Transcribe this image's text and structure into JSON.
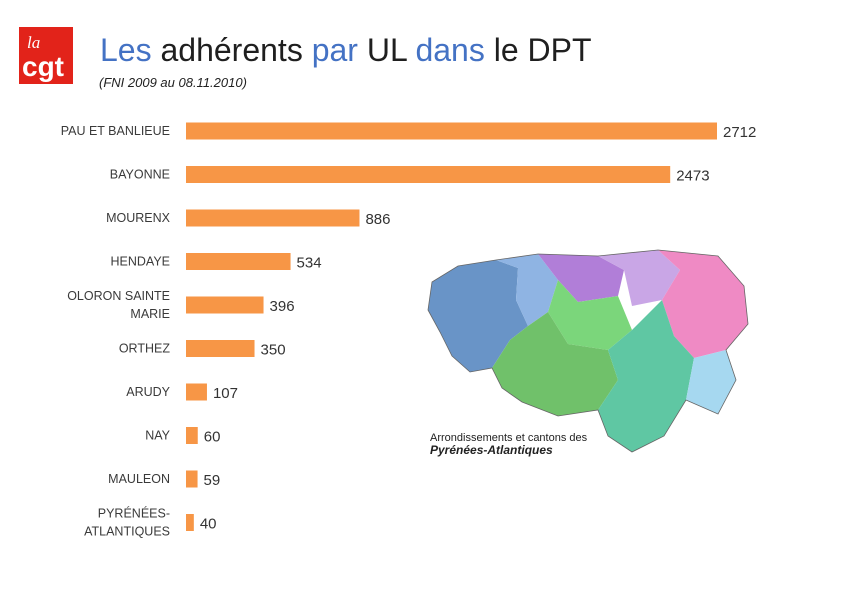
{
  "logo": {
    "top_text": "la",
    "main_text": "cgt",
    "color": "#e2231a"
  },
  "header": {
    "title_words": [
      "Les",
      "adhérents",
      "par",
      "UL",
      "dans",
      "le",
      "DPT"
    ],
    "subtitle": "(FNI 2009 au 08.11.2010)"
  },
  "chart_data": {
    "type": "bar",
    "orientation": "horizontal",
    "title": "",
    "xlabel": "",
    "ylabel": "",
    "categories": [
      [
        "PAU ET BANLIEUE"
      ],
      [
        "BAYONNE"
      ],
      [
        "MOURENX"
      ],
      [
        "HENDAYE"
      ],
      [
        "OLORON SAINTE",
        "MARIE"
      ],
      [
        "ORTHEZ"
      ],
      [
        "ARUDY"
      ],
      [
        "NAY"
      ],
      [
        "MAULEON"
      ],
      [
        "PYRÉNÉES-",
        "ATLANTIQUES"
      ]
    ],
    "values": [
      2712,
      2473,
      886,
      534,
      396,
      350,
      107,
      60,
      59,
      40
    ],
    "xlim": [
      0,
      2712
    ],
    "bar_color": "#f79646",
    "grid": false,
    "legend": "none",
    "data_labels": true
  },
  "map": {
    "caption_line1": "Arrondissements et cantons des",
    "caption_line2": "Pyrénées-Atlantiques"
  }
}
